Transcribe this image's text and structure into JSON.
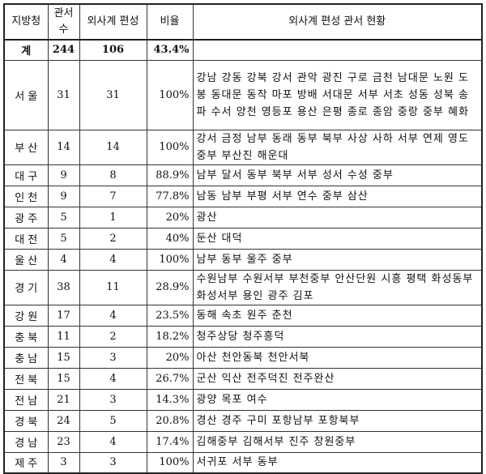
{
  "headers": {
    "region": "지방청",
    "stations": "관서수",
    "foreign": "외사계 편성",
    "ratio": "비율",
    "list": "외사계 편성 관서 현황"
  },
  "total": {
    "region": "계",
    "stations": "244",
    "foreign": "106",
    "ratio": "43.4%",
    "list": ""
  },
  "rows": [
    {
      "region": "서 울",
      "stations": "31",
      "foreign": "31",
      "ratio": "100%",
      "list": "강남 강동 강북 강서 관악 광진 구로 금천 남대문 노원 도봉 동대문 동작 마포 방배 서대문 서부 서초 성동 성북 송파 수서 양천 영등포 용산 은평 종로 종암 중랑 중부 혜화"
    },
    {
      "region": "부 산",
      "stations": "14",
      "foreign": "14",
      "ratio": "100%",
      "list": "강서 금정 남부 동래 동부 북부 사상 사하 서부 연제 영도 중부 부산진 해운대"
    },
    {
      "region": "대 구",
      "stations": "9",
      "foreign": "8",
      "ratio": "88.9%",
      "list": "남부 달서 동부 북부 서부 성서 수성 중부"
    },
    {
      "region": "인 천",
      "stations": "9",
      "foreign": "7",
      "ratio": "77.8%",
      "list": "남동 남부 부평 서부 연수 중부 삼산"
    },
    {
      "region": "광 주",
      "stations": "5",
      "foreign": "1",
      "ratio": "20%",
      "list": "광산"
    },
    {
      "region": "대 전",
      "stations": "5",
      "foreign": "2",
      "ratio": "40%",
      "list": "둔산 대덕"
    },
    {
      "region": "울 산",
      "stations": "4",
      "foreign": "4",
      "ratio": "100%",
      "list": "남부 동부 울주 중부"
    },
    {
      "region": "경 기",
      "stations": "38",
      "foreign": "11",
      "ratio": "28.9%",
      "list": "수원남부 수원서부 부천중부 안산단원 시흥 평택 화성동부 화성서부 용인 광주 김포"
    },
    {
      "region": "강 원",
      "stations": "17",
      "foreign": "4",
      "ratio": "23.5%",
      "list": "동해 속초 원주 춘천"
    },
    {
      "region": "충 북",
      "stations": "11",
      "foreign": "2",
      "ratio": "18.2%",
      "list": "청주상당 청주흥덕"
    },
    {
      "region": "충 남",
      "stations": "15",
      "foreign": "3",
      "ratio": "20%",
      "list": "아산 천안동북 천안서북"
    },
    {
      "region": "전 북",
      "stations": "15",
      "foreign": "4",
      "ratio": "26.7%",
      "list": "군산 익산 전주덕진 전주완산"
    },
    {
      "region": "전 남",
      "stations": "21",
      "foreign": "3",
      "ratio": "14.3%",
      "list": "광양 목포 여수"
    },
    {
      "region": "경 북",
      "stations": "24",
      "foreign": "5",
      "ratio": "20.8%",
      "list": "경산 경주 구미 포항남부 포항북부"
    },
    {
      "region": "경 남",
      "stations": "23",
      "foreign": "4",
      "ratio": "17.4%",
      "list": "김해중부 김해서부 진주 창원중부"
    },
    {
      "region": "제 주",
      "stations": "3",
      "foreign": "3",
      "ratio": "100%",
      "list": "서귀포 서부 동부"
    }
  ]
}
